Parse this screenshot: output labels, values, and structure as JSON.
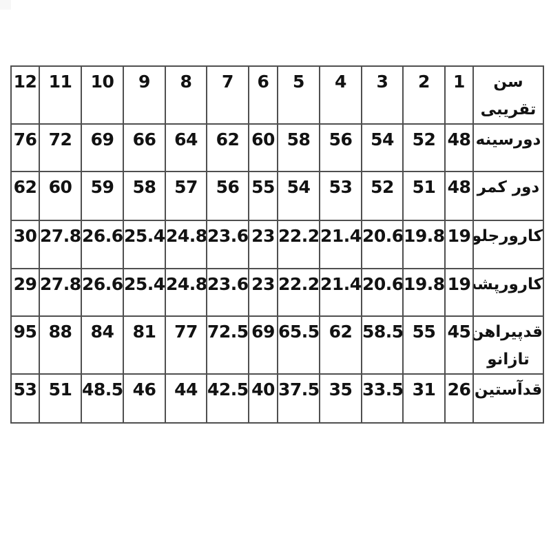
{
  "page": {
    "background_color": "#ffffff",
    "text_color": "#121212",
    "grid_line_color": "#4f4f4f",
    "language": "fa",
    "direction": "rtl"
  },
  "chart_data": {
    "type": "table",
    "title": "",
    "rtl": true,
    "description_note": "Persian children's clothing size chart; header row is approximate age in years, columns run 12 down to 1 from left to right, measurement labels are in the rightmost column",
    "column_header_label": "سن تقریبی",
    "columns_left_to_right": [
      "12",
      "11",
      "10",
      "9",
      "8",
      "7",
      "6",
      "5",
      "4",
      "3",
      "2",
      "1"
    ],
    "rows": [
      {
        "label": "سن تقریبی",
        "label_lines": [
          "سن",
          "تقریبی"
        ],
        "values": [
          "12",
          "11",
          "10",
          "9",
          "8",
          "7",
          "6",
          "5",
          "4",
          "3",
          "2",
          "1"
        ]
      },
      {
        "label": "دورسینه",
        "label_lines": [
          "دورسینه"
        ],
        "values": [
          "76",
          "72",
          "69",
          "66",
          "64",
          "62",
          "60",
          "58",
          "56",
          "54",
          "52",
          "48"
        ]
      },
      {
        "label": "دور کمر",
        "label_lines": [
          "دور کمر"
        ],
        "values": [
          "62",
          "60",
          "59",
          "58",
          "57",
          "56",
          "55",
          "54",
          "53",
          "52",
          "51",
          "48"
        ]
      },
      {
        "label": "کارورجلو",
        "label_lines": [
          "کارورجلو"
        ],
        "values": [
          "30",
          "27.8",
          "26.6",
          "25.4",
          "24.8",
          "23.6",
          "23",
          "22.2",
          "21.4",
          "20.6",
          "19.8",
          "19"
        ]
      },
      {
        "label": "کارورپشت",
        "label_lines": [
          "کارورپشت"
        ],
        "values": [
          "29",
          "27.8",
          "26.6",
          "25.4",
          "24.8",
          "23.6",
          "23",
          "22.2",
          "21.4",
          "20.6",
          "19.8",
          "19"
        ]
      },
      {
        "label": "قدپیراهن تازانو",
        "label_lines": [
          "قدپیراهن",
          "تازانو"
        ],
        "values": [
          "95",
          "88",
          "84",
          "81",
          "77",
          "72.5",
          "69",
          "65.5",
          "62",
          "58.5",
          "55",
          "45"
        ]
      },
      {
        "label": "قدآستین",
        "label_lines": [
          "قدآستین"
        ],
        "values": [
          "53",
          "51",
          "48.5",
          "46",
          "44",
          "42.5",
          "40",
          "37.5",
          "35",
          "33.5",
          "31",
          "26"
        ]
      }
    ]
  }
}
